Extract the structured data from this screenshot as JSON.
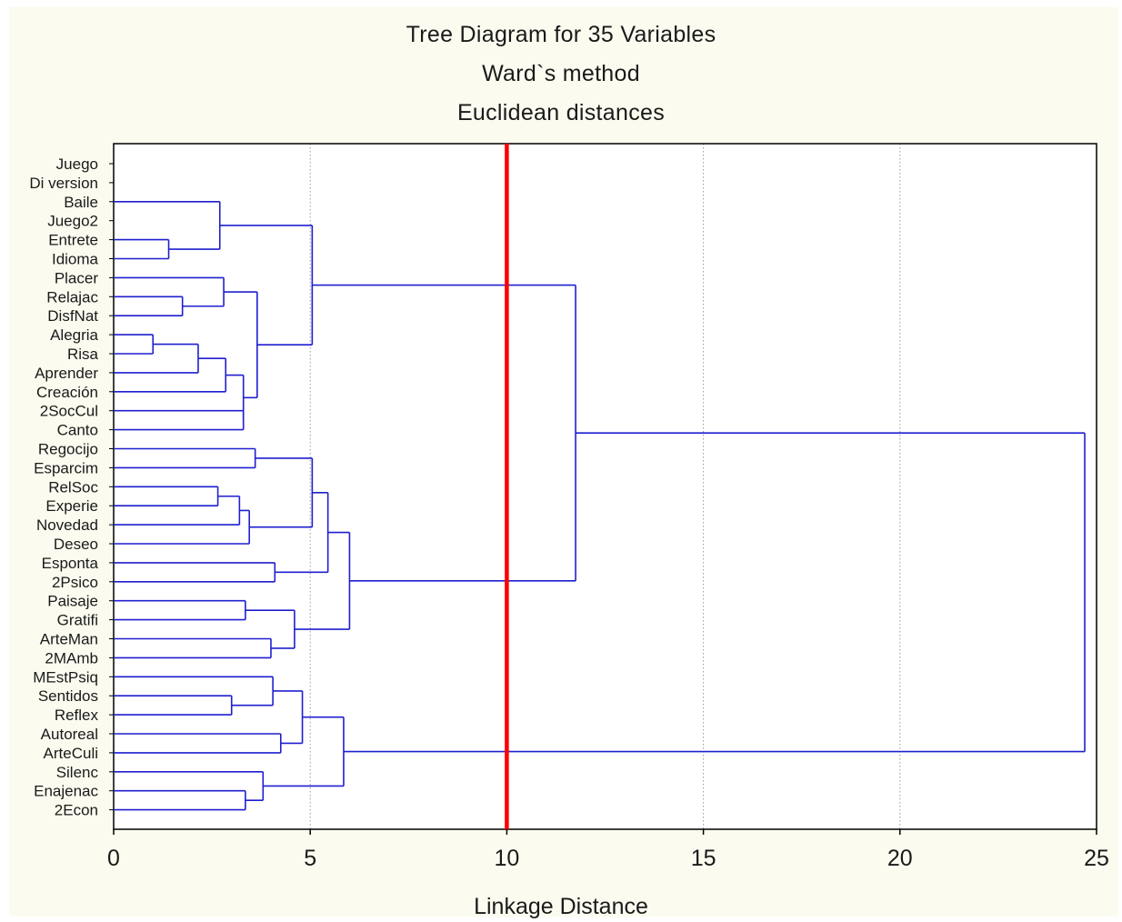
{
  "chart_data": {
    "type": "dendrogram",
    "title": "Tree Diagram for 35  Variables",
    "subtitle_1": "Ward`s method",
    "subtitle_2": "Euclidean distances",
    "xlabel": "Linkage Distance",
    "xlim": [
      0,
      25
    ],
    "xticks": [
      0,
      5,
      10,
      15,
      20,
      25
    ],
    "grid": "vertical dotted",
    "leaves": [
      "Juego",
      "Diversion",
      "Baile",
      "Juego2",
      "Entrete",
      "Idioma",
      "Placer",
      "Relajac",
      "DisfNat",
      "Alegria",
      "Risa",
      "Aprender",
      "Creación",
      "2SocCul",
      "Canto",
      "Regocijo",
      "Esparcim",
      "RelSoc",
      "Experie",
      "Novedad",
      "Deseo",
      "Esponta",
      "2Psico",
      "Paisaje",
      "Gratifi",
      "ArteMan",
      "2MAmb",
      "MEstPsiq",
      "Sentidos",
      "Reflex",
      "Autoreal",
      "ArteCuli",
      "Silenc",
      "Enajenac",
      "2Econ"
    ],
    "leaf_labels": [
      "Juego",
      "Di version",
      "Baile",
      "Juego2",
      "Entrete",
      "Idioma",
      "Placer",
      "Relajac",
      "DisfNat",
      "Alegria",
      "Risa",
      "Aprender",
      "Creación",
      "2SocCul",
      "Canto",
      "Regocijo",
      "Esparcim",
      "RelSoc",
      "Experie",
      "Novedad",
      "Deseo",
      "Esponta",
      "2Psico",
      "Paisaje",
      "Gratifi",
      "ArteMan",
      "2MAmb",
      "MEstPsiq",
      "Sentidos",
      "Reflex",
      "Autoreal",
      "ArteCuli",
      "Silenc",
      "Enajenac",
      "2Econ"
    ],
    "merges": [
      {
        "id": "m1",
        "a": "Entrete",
        "b": "Idioma",
        "height": 1.4
      },
      {
        "id": "m2",
        "a": "Baile",
        "b": "m1",
        "height": 2.7
      },
      {
        "id": "m3",
        "a": "Relajac",
        "b": "DisfNat",
        "height": 1.75
      },
      {
        "id": "m4",
        "a": "Placer",
        "b": "m3",
        "height": 2.8
      },
      {
        "id": "m5",
        "a": "Alegria",
        "b": "Risa",
        "height": 1.0
      },
      {
        "id": "m6",
        "a": "m5",
        "b": "Aprender",
        "height": 2.15
      },
      {
        "id": "m7",
        "a": "m6",
        "b": "Creación",
        "height": 2.85
      },
      {
        "id": "m8",
        "a": "2SocCul",
        "b": "Canto",
        "height": 3.3
      },
      {
        "id": "m9",
        "a": "m7",
        "b": "m8",
        "height": 3.3
      },
      {
        "id": "m10",
        "a": "m4",
        "b": "m9",
        "height": 3.65
      },
      {
        "id": "m11",
        "a": "m2",
        "b": "m10",
        "height": 5.05
      },
      {
        "id": "m12",
        "a": "Regocijo",
        "b": "Esparcim",
        "height": 3.6
      },
      {
        "id": "m13",
        "a": "RelSoc",
        "b": "Experie",
        "height": 2.65
      },
      {
        "id": "m14",
        "a": "m13",
        "b": "Novedad",
        "height": 3.2
      },
      {
        "id": "m15",
        "a": "m14",
        "b": "Deseo",
        "height": 3.45
      },
      {
        "id": "m16",
        "a": "m12",
        "b": "m15",
        "height": 5.05
      },
      {
        "id": "m17",
        "a": "Esponta",
        "b": "2Psico",
        "height": 4.1
      },
      {
        "id": "m18",
        "a": "m16",
        "b": "m17",
        "height": 5.45
      },
      {
        "id": "m19",
        "a": "Paisaje",
        "b": "Gratifi",
        "height": 3.35
      },
      {
        "id": "m20",
        "a": "ArteMan",
        "b": "2MAmb",
        "height": 4.0
      },
      {
        "id": "m21",
        "a": "m19",
        "b": "m20",
        "height": 4.6
      },
      {
        "id": "m22",
        "a": "m18",
        "b": "m21",
        "height": 6.0
      },
      {
        "id": "m23",
        "a": "Sentidos",
        "b": "Reflex",
        "height": 3.0
      },
      {
        "id": "m24",
        "a": "MEstPsiq",
        "b": "m23",
        "height": 4.05
      },
      {
        "id": "m25",
        "a": "Autoreal",
        "b": "ArteCuli",
        "height": 4.25
      },
      {
        "id": "m26",
        "a": "m24",
        "b": "m25",
        "height": 4.8
      },
      {
        "id": "m27",
        "a": "Enajenac",
        "b": "2Econ",
        "height": 3.35
      },
      {
        "id": "m28",
        "a": "Silenc",
        "b": "m27",
        "height": 3.8
      },
      {
        "id": "m29",
        "a": "m26",
        "b": "m28",
        "height": 5.85
      },
      {
        "id": "m30",
        "a": "m11",
        "b": "m22",
        "height": 11.75
      },
      {
        "id": "m31",
        "a": "m30",
        "b": "m29",
        "height": 24.7
      }
    ],
    "cutoff_line": {
      "x": 10,
      "color": "#ff0000"
    },
    "colors": {
      "tree": "#1f1fd0",
      "background": "#fbfbef",
      "axis": "#000000",
      "grid": "#9a9a9a"
    }
  }
}
